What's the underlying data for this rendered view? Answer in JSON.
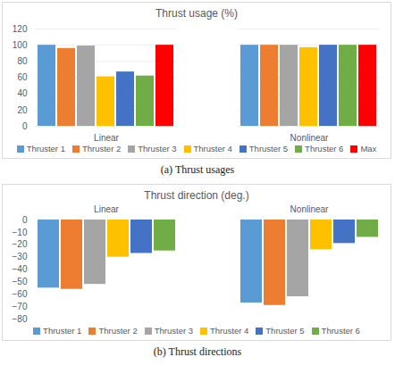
{
  "chart_data": [
    {
      "type": "bar",
      "title": "Thrust usage (%)",
      "caption": "(a) Thrust usages",
      "categories": [
        "Linear",
        "Nonlinear"
      ],
      "series": [
        {
          "name": "Thruster 1",
          "color": "#5b9bd5",
          "values": [
            100,
            100
          ]
        },
        {
          "name": "Thruster 2",
          "color": "#ed7d31",
          "values": [
            96,
            100
          ]
        },
        {
          "name": "Thruster 3",
          "color": "#a5a5a5",
          "values": [
            99,
            100
          ]
        },
        {
          "name": "Thruster 4",
          "color": "#ffc000",
          "values": [
            61,
            97
          ]
        },
        {
          "name": "Thruster 5",
          "color": "#4472c4",
          "values": [
            67,
            100
          ]
        },
        {
          "name": "Thruster 6",
          "color": "#70ad47",
          "values": [
            62,
            100
          ]
        },
        {
          "name": "Max",
          "color": "#ff0000",
          "values": [
            100,
            100
          ]
        }
      ],
      "ylim": [
        0,
        120
      ],
      "yticks": [
        0,
        20,
        40,
        60,
        80,
        100,
        120
      ],
      "grid": true,
      "legend": "bottom"
    },
    {
      "type": "bar",
      "title": "Thrust direction (deg.)",
      "caption": "(b) Thrust directions",
      "categories": [
        "Linear",
        "Nonlinear"
      ],
      "series": [
        {
          "name": "Thruster 1",
          "color": "#5b9bd5",
          "values": [
            -55,
            -67
          ]
        },
        {
          "name": "Thruster 2",
          "color": "#ed7d31",
          "values": [
            -56,
            -69
          ]
        },
        {
          "name": "Thruster 3",
          "color": "#a5a5a5",
          "values": [
            -52,
            -62
          ]
        },
        {
          "name": "Thruster 4",
          "color": "#ffc000",
          "values": [
            -30,
            -24
          ]
        },
        {
          "name": "Thruster 5",
          "color": "#4472c4",
          "values": [
            -27,
            -19
          ]
        },
        {
          "name": "Thruster 6",
          "color": "#70ad47",
          "values": [
            -25,
            -14
          ]
        }
      ],
      "ylim": [
        -80,
        0
      ],
      "yticks": [
        0,
        -10,
        -20,
        -30,
        -40,
        -50,
        -60,
        -70,
        -80
      ],
      "grid": false,
      "legend": "bottom"
    }
  ]
}
